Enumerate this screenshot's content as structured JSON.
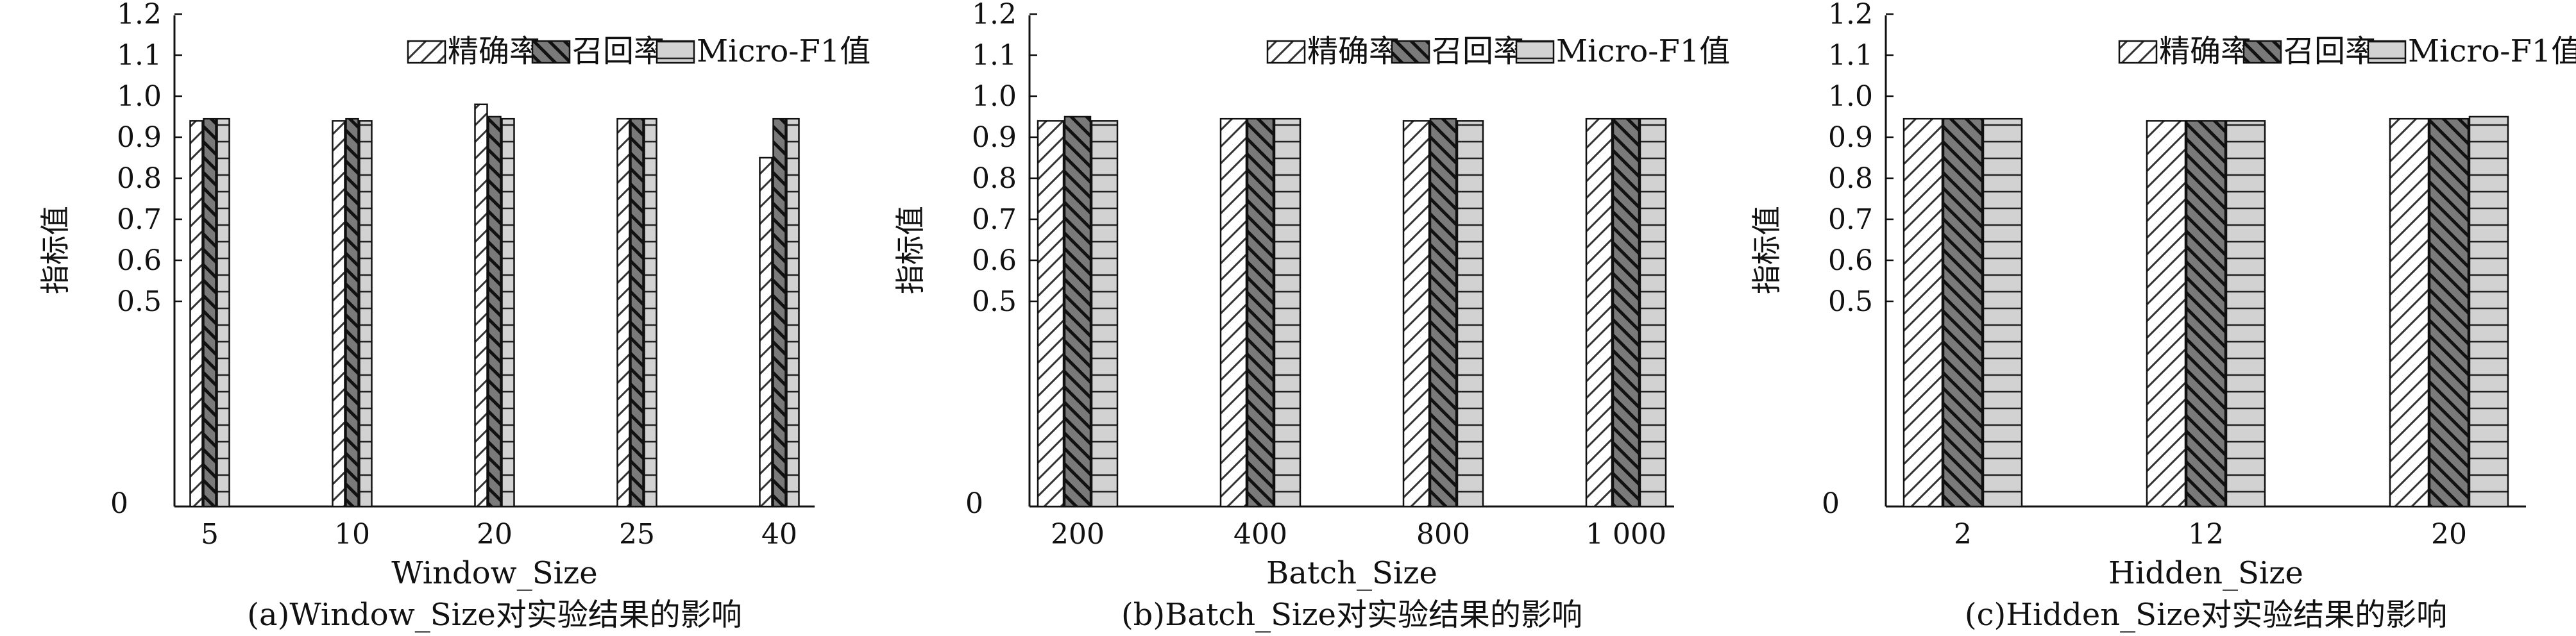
{
  "chart_data": [
    {
      "type": "bar",
      "caption": "(a)Window_Size对实验结果的影响",
      "xlabel": "Window_Size",
      "ylabel": "指标值",
      "categories": [
        "5",
        "10",
        "20",
        "25",
        "40"
      ],
      "ylim": [
        0,
        1.2
      ],
      "yticks": [
        "0",
        "0.5",
        "0.6",
        "0.7",
        "0.8",
        "0.9",
        "1.0",
        "1.1",
        "1.2"
      ],
      "legend_position": "top-right",
      "series": [
        {
          "name": "精确率",
          "pattern": "fwd-diag",
          "values": [
            0.94,
            0.94,
            0.98,
            0.945,
            0.85
          ]
        },
        {
          "name": "召回率",
          "pattern": "back-diag-dark",
          "values": [
            0.945,
            0.945,
            0.95,
            0.945,
            0.945
          ]
        },
        {
          "name": "Micro-F1值",
          "pattern": "horizontal",
          "values": [
            0.945,
            0.94,
            0.945,
            0.945,
            0.945
          ]
        }
      ]
    },
    {
      "type": "bar",
      "caption": "(b)Batch_Size对实验结果的影响",
      "xlabel": "Batch_Size",
      "ylabel": "指标值",
      "categories": [
        "200",
        "400",
        "800",
        "1 000"
      ],
      "ylim": [
        0,
        1.2
      ],
      "yticks": [
        "0",
        "0.5",
        "0.6",
        "0.7",
        "0.8",
        "0.9",
        "1.0",
        "1.1",
        "1.2"
      ],
      "legend_position": "top-right",
      "series": [
        {
          "name": "精确率",
          "pattern": "fwd-diag",
          "values": [
            0.94,
            0.945,
            0.94,
            0.945
          ]
        },
        {
          "name": "召回率",
          "pattern": "back-diag-dark",
          "values": [
            0.95,
            0.945,
            0.945,
            0.945
          ]
        },
        {
          "name": "Micro-F1值",
          "pattern": "horizontal",
          "values": [
            0.94,
            0.945,
            0.94,
            0.945
          ]
        }
      ]
    },
    {
      "type": "bar",
      "caption": "(c)Hidden_Size对实验结果的影响",
      "xlabel": "Hidden_Size",
      "ylabel": "指标值",
      "categories": [
        "2",
        "12",
        "20"
      ],
      "ylim": [
        0,
        1.2
      ],
      "yticks": [
        "0",
        "0.5",
        "0.6",
        "0.7",
        "0.8",
        "0.9",
        "1.0",
        "1.1",
        "1.2"
      ],
      "legend_position": "top-right",
      "series": [
        {
          "name": "精确率",
          "pattern": "fwd-diag",
          "values": [
            0.945,
            0.94,
            0.945
          ]
        },
        {
          "name": "召回率",
          "pattern": "back-diag-dark",
          "values": [
            0.945,
            0.94,
            0.945
          ]
        },
        {
          "name": "Micro-F1值",
          "pattern": "horizontal",
          "values": [
            0.945,
            0.94,
            0.95
          ]
        }
      ]
    }
  ]
}
